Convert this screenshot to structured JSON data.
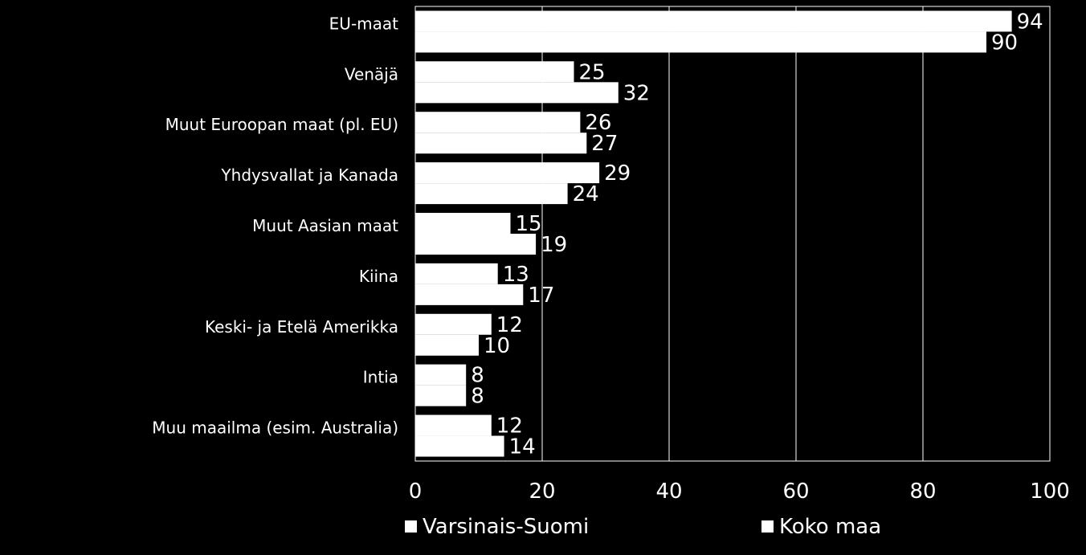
{
  "chart_data": {
    "type": "bar",
    "orientation": "horizontal",
    "categories": [
      "EU-maat",
      "Venäjä",
      "Muut Euroopan maat (pl. EU)",
      "Yhdysvallat ja Kanada",
      "Muut Aasian maat",
      "Kiina",
      "Keski- ja Etelä Amerikka",
      "Intia",
      "Muu maailma (esim. Australia)"
    ],
    "series": [
      {
        "name": "Varsinais-Suomi",
        "values": [
          94,
          25,
          26,
          29,
          15,
          13,
          12,
          8,
          12
        ]
      },
      {
        "name": "Koko maa",
        "values": [
          90,
          32,
          27,
          24,
          19,
          17,
          10,
          8,
          14
        ]
      }
    ],
    "xlim": [
      0,
      100
    ],
    "xticks": [
      "0",
      "20",
      "40",
      "60",
      "80",
      "100"
    ],
    "grid": true,
    "legend_position": "bottom",
    "colors": {
      "background": "#000000",
      "plot_area": "#000000",
      "bar_fill": "#ffffff",
      "gridline": "#ffffff",
      "text": "#ffffff"
    }
  }
}
